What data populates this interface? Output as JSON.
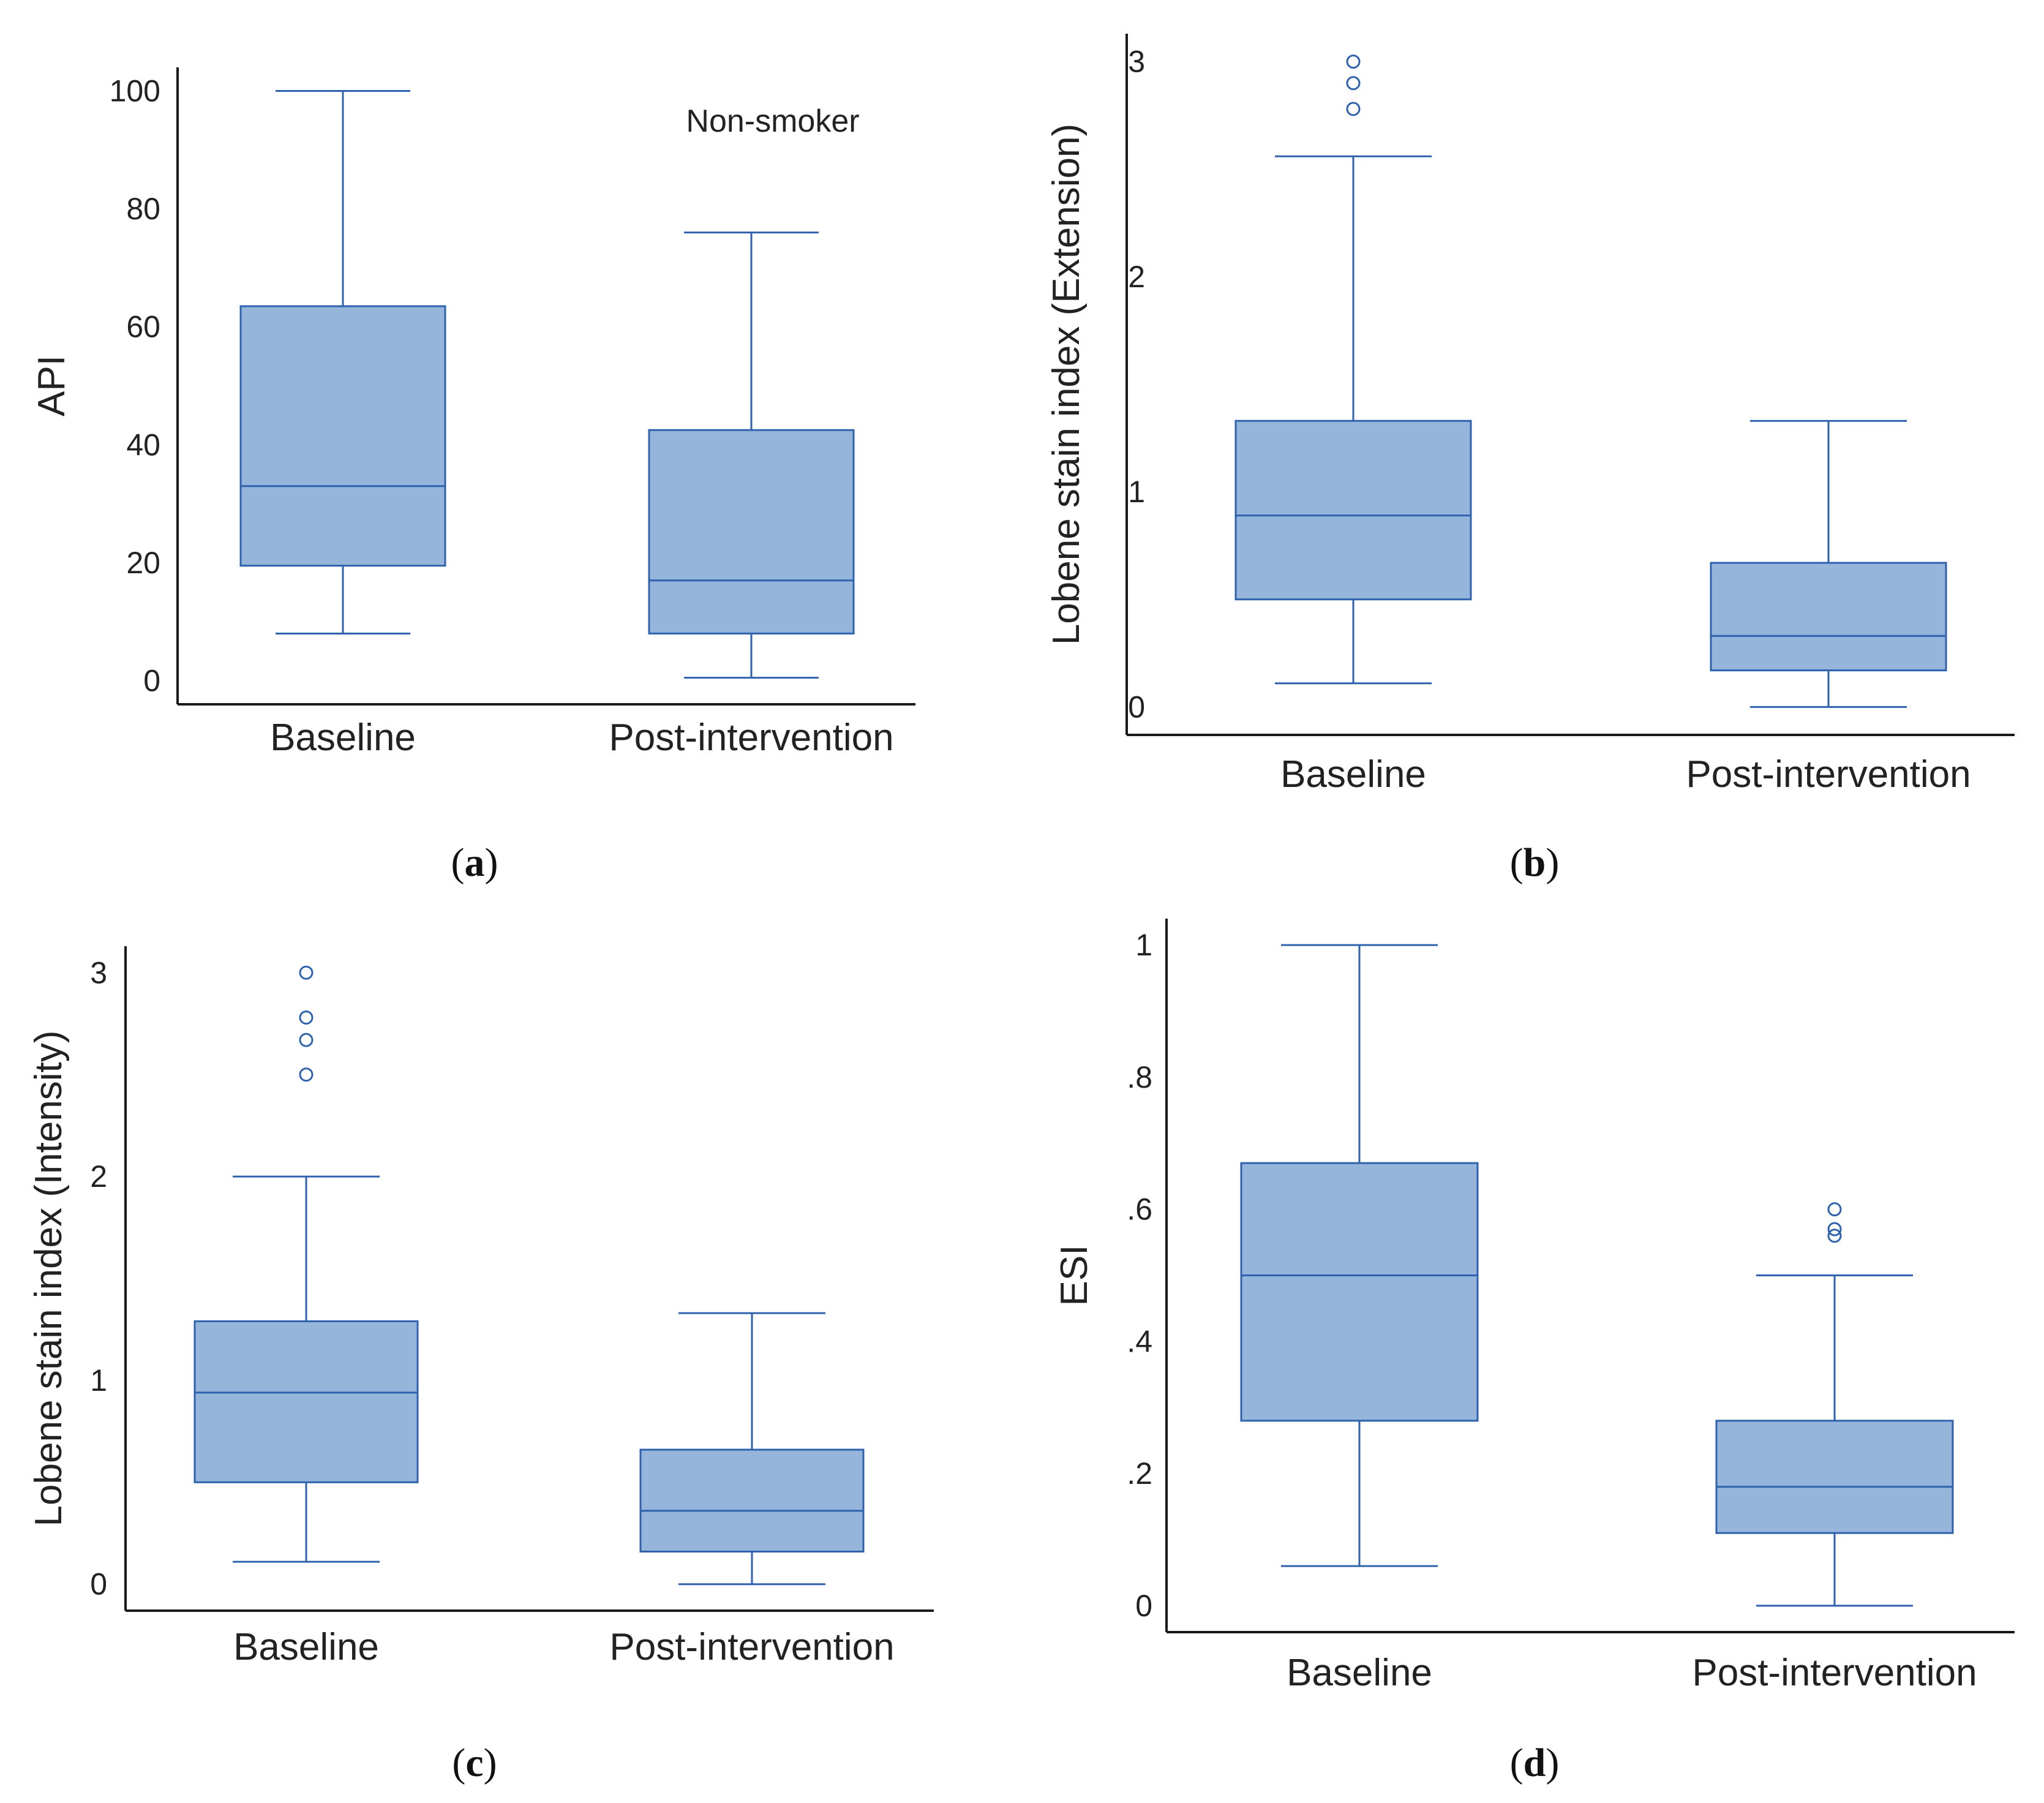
{
  "figure_colors": {
    "box_fill": "#95b5da",
    "box_stroke": "#2f62ad",
    "axis": "#1a1a1a",
    "text": "#222222"
  },
  "chart_data": [
    {
      "panel": "a",
      "panel_label": "(a)",
      "panel_letter": "a",
      "type": "boxplot",
      "ylabel": "API",
      "annotation": "Non-smoker",
      "ylim": [
        -4,
        104
      ],
      "yticks": [
        {
          "value": 0,
          "label": "0"
        },
        {
          "value": 20,
          "label": "20"
        },
        {
          "value": 40,
          "label": "40"
        },
        {
          "value": 60,
          "label": "60"
        },
        {
          "value": 80,
          "label": "80"
        },
        {
          "value": 100,
          "label": "100"
        }
      ],
      "categories": [
        "Baseline",
        "Post-intervention"
      ],
      "boxes": [
        {
          "category": "Baseline",
          "whisker_low": 8,
          "q1": 19.5,
          "median": 33,
          "q3": 63.5,
          "whisker_high": 100,
          "outliers": []
        },
        {
          "category": "Post-intervention",
          "whisker_low": 0.5,
          "q1": 8,
          "median": 17,
          "q3": 42.5,
          "whisker_high": 76,
          "outliers": []
        }
      ]
    },
    {
      "panel": "b",
      "panel_label": "(b)",
      "panel_letter": "b",
      "type": "boxplot",
      "ylabel": "Lobene stain index (Extension)",
      "annotation": "",
      "ylim": [
        -0.13,
        3.13
      ],
      "yticks": [
        {
          "value": 0,
          "label": "0"
        },
        {
          "value": 1,
          "label": "1"
        },
        {
          "value": 2,
          "label": "2"
        },
        {
          "value": 3,
          "label": "3"
        }
      ],
      "categories": [
        "Baseline",
        "Post-intervention"
      ],
      "boxes": [
        {
          "category": "Baseline",
          "whisker_low": 0.11,
          "q1": 0.5,
          "median": 0.89,
          "q3": 1.33,
          "whisker_high": 2.56,
          "outliers": [
            2.78,
            2.9,
            3.0
          ]
        },
        {
          "category": "Post-intervention",
          "whisker_low": 0.0,
          "q1": 0.17,
          "median": 0.33,
          "q3": 0.67,
          "whisker_high": 1.33,
          "outliers": []
        }
      ]
    },
    {
      "panel": "c",
      "panel_label": "(c)",
      "panel_letter": "c",
      "type": "boxplot",
      "ylabel": "Lobene stain index (Intensity)",
      "annotation": "",
      "ylim": [
        -0.13,
        3.13
      ],
      "yticks": [
        {
          "value": 0,
          "label": "0"
        },
        {
          "value": 1,
          "label": "1"
        },
        {
          "value": 2,
          "label": "2"
        },
        {
          "value": 3,
          "label": "3"
        }
      ],
      "categories": [
        "Baseline",
        "Post-intervention"
      ],
      "boxes": [
        {
          "category": "Baseline",
          "whisker_low": 0.11,
          "q1": 0.5,
          "median": 0.94,
          "q3": 1.29,
          "whisker_high": 2.0,
          "outliers": [
            2.5,
            2.67,
            2.78,
            3.0
          ]
        },
        {
          "category": "Post-intervention",
          "whisker_low": 0.0,
          "q1": 0.16,
          "median": 0.36,
          "q3": 0.66,
          "whisker_high": 1.33,
          "outliers": []
        }
      ]
    },
    {
      "panel": "d",
      "panel_label": "(d)",
      "panel_letter": "d",
      "type": "boxplot",
      "ylabel": "ESI",
      "annotation": "",
      "ylim": [
        -0.04,
        1.04
      ],
      "yticks": [
        {
          "value": 0,
          "label": "0"
        },
        {
          "value": 0.2,
          "label": ".2"
        },
        {
          "value": 0.4,
          "label": ".4"
        },
        {
          "value": 0.6,
          "label": ".6"
        },
        {
          "value": 0.8,
          "label": ".8"
        },
        {
          "value": 1.0,
          "label": "1"
        }
      ],
      "categories": [
        "Baseline",
        "Post-intervention"
      ],
      "boxes": [
        {
          "category": "Baseline",
          "whisker_low": 0.06,
          "q1": 0.28,
          "median": 0.5,
          "q3": 0.67,
          "whisker_high": 1.0,
          "outliers": []
        },
        {
          "category": "Post-intervention",
          "whisker_low": 0.0,
          "q1": 0.11,
          "median": 0.18,
          "q3": 0.28,
          "whisker_high": 0.5,
          "outliers": [
            0.56,
            0.57,
            0.6
          ]
        }
      ]
    }
  ]
}
